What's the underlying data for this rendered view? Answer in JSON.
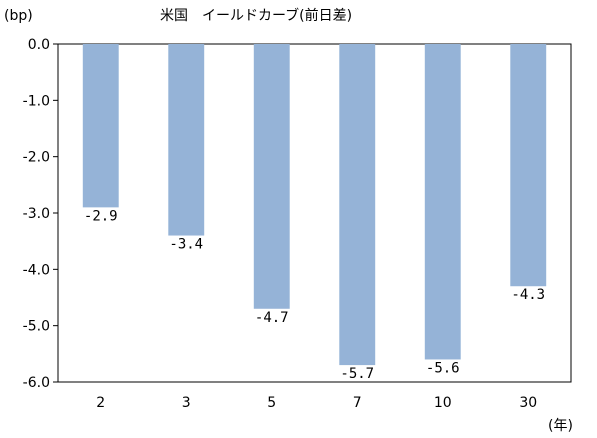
{
  "chart_data": {
    "type": "bar",
    "title": "米国　イールドカーブ(前日差)",
    "ylabel": "(bp)",
    "xlabel": "(年)",
    "categories": [
      "2",
      "3",
      "5",
      "7",
      "10",
      "30"
    ],
    "values": [
      -2.9,
      -3.4,
      -4.7,
      -5.7,
      -5.6,
      -4.3
    ],
    "data_labels": [
      "-2.9",
      "-3.4",
      "-4.7",
      "-5.7",
      "-5.6",
      "-4.3"
    ],
    "yticks": [
      0.0,
      -1.0,
      -2.0,
      -3.0,
      -4.0,
      -5.0,
      -6.0
    ],
    "ytick_labels": [
      "0.0",
      "-1.0",
      "-2.0",
      "-3.0",
      "-4.0",
      "-5.0",
      "-6.0"
    ],
    "ylim": [
      -6.0,
      0.0
    ],
    "grid": false,
    "legend": "none",
    "bar_color": "#95b3d7",
    "axis_color": "#000000"
  }
}
